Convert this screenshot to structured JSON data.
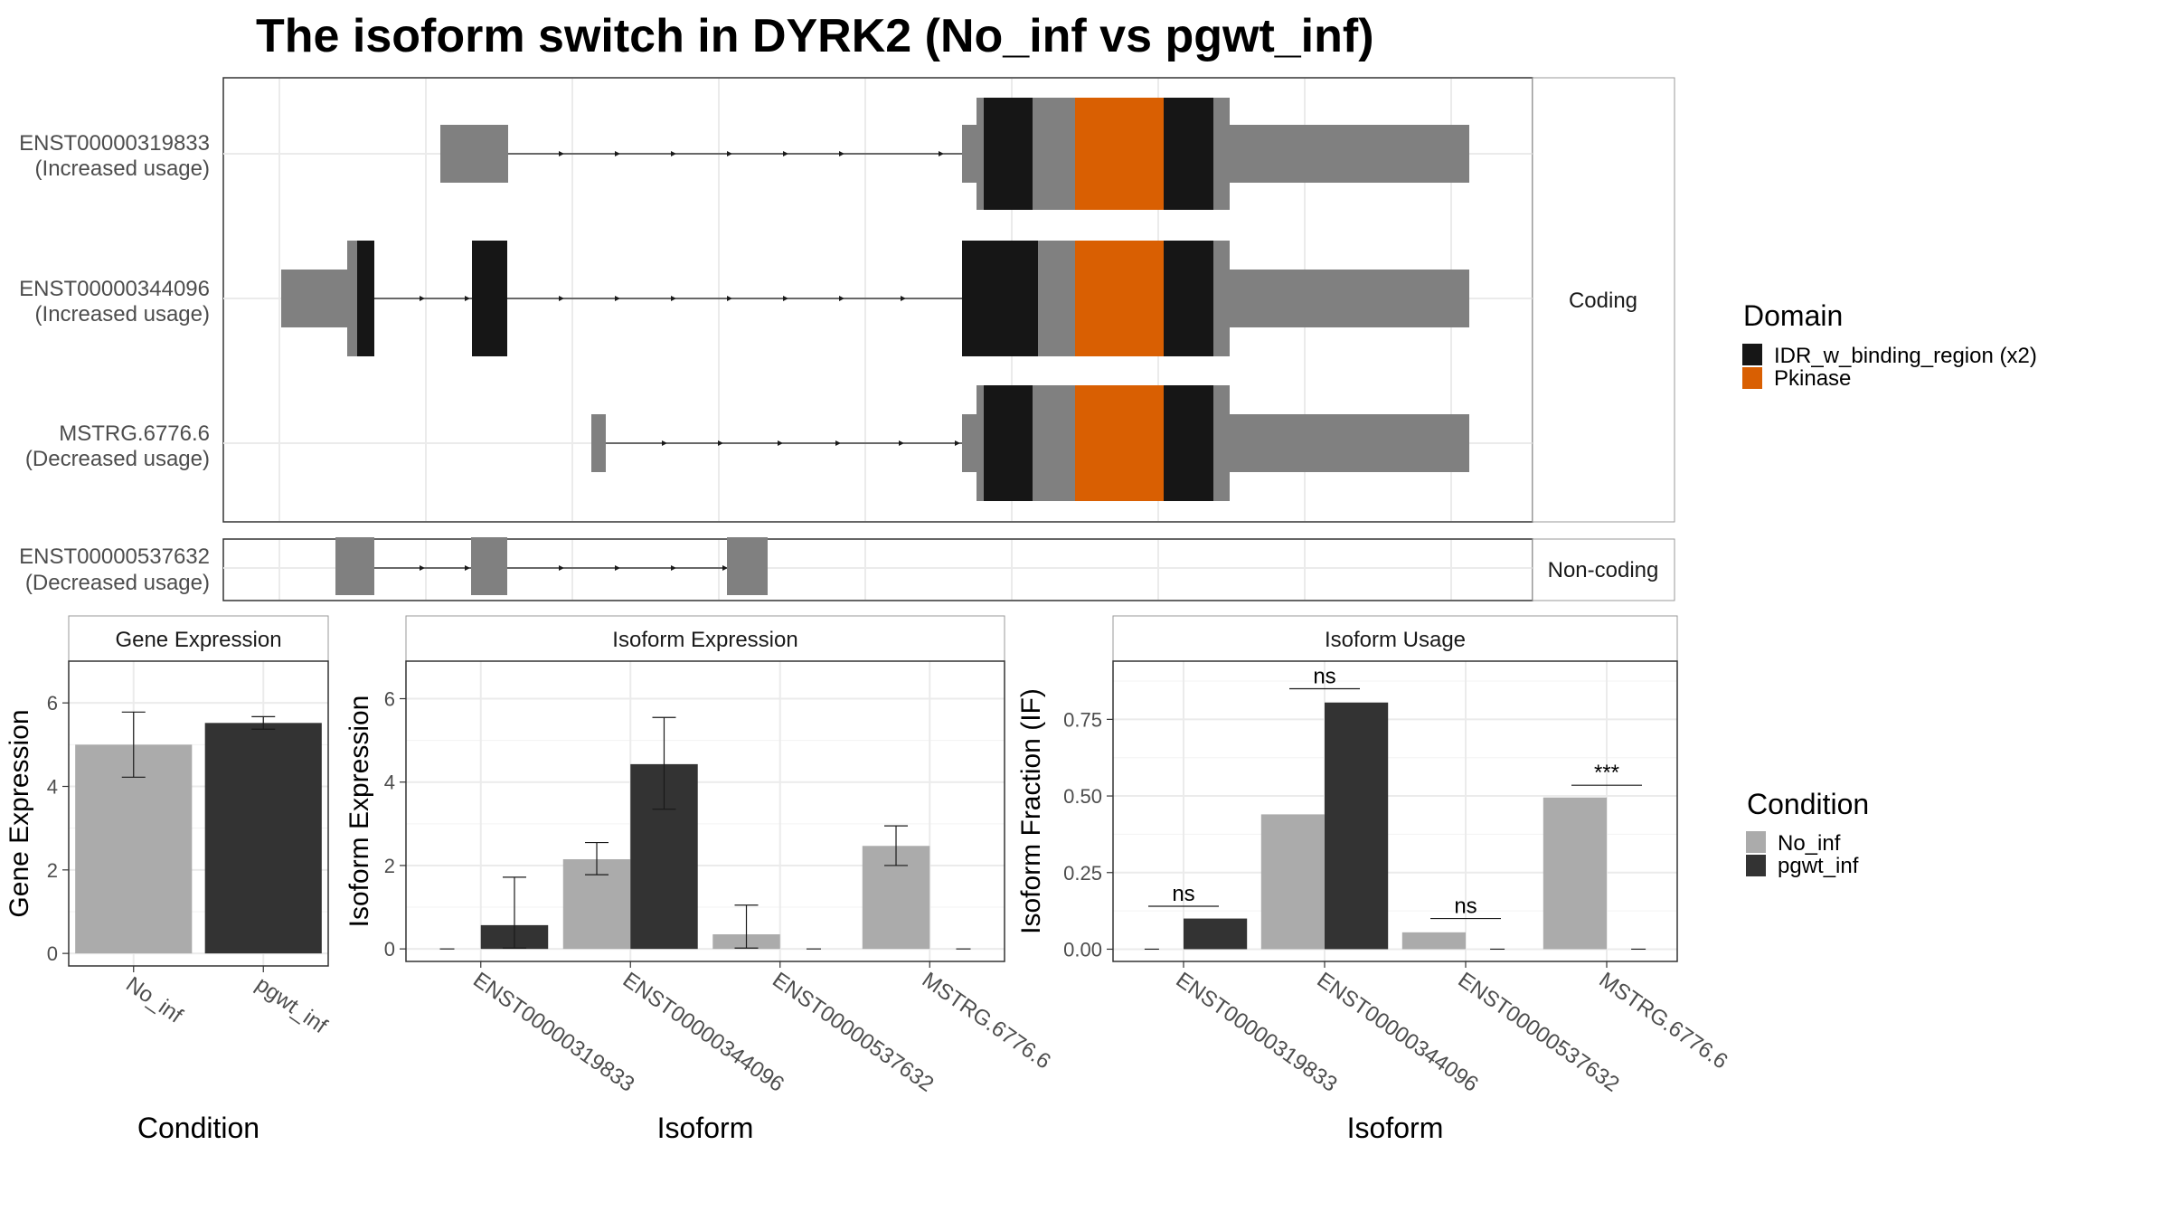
{
  "title": "The isoform switch in DYRK2 (No_inf vs pgwt_inf)",
  "colors": {
    "no_inf": "#ababab",
    "pgwt_inf": "#333333",
    "idr": "#161616",
    "pkinase": "#d95f02",
    "exon": "#808080",
    "grid": "#ebebeb",
    "border": "#333333"
  },
  "transcripts": {
    "coding_strip_label": "Coding",
    "noncoding_strip_label": "Non-coding",
    "rows": [
      {
        "id": "ENST00000319833",
        "usage": "(Increased usage)",
        "group": "coding"
      },
      {
        "id": "ENST00000344096",
        "usage": "(Increased usage)",
        "group": "coding"
      },
      {
        "id": "MSTRG.6776.6",
        "usage": "(Decreased usage)",
        "group": "coding"
      },
      {
        "id": "ENST00000537632",
        "usage": "(Decreased usage)",
        "group": "noncoding"
      }
    ]
  },
  "domain_legend": {
    "title": "Domain",
    "items": [
      {
        "label": "IDR_w_binding_region (x2)",
        "color": "#161616"
      },
      {
        "label": "Pkinase",
        "color": "#d95f02"
      }
    ]
  },
  "condition_legend": {
    "title": "Condition",
    "items": [
      {
        "label": "No_inf",
        "color": "#ababab"
      },
      {
        "label": "pgwt_inf",
        "color": "#333333"
      }
    ]
  },
  "chart_data": [
    {
      "type": "bar",
      "panel": "Gene Expression",
      "xlabel": "Condition",
      "ylabel": "Gene Expression",
      "ylim": [
        -0.3,
        7
      ],
      "yticks": [
        0,
        2,
        4,
        6
      ],
      "categories": [
        "No_inf",
        "pgwt_inf"
      ],
      "values": [
        5.0,
        5.52
      ],
      "errors": [
        [
          4.22,
          5.78
        ],
        [
          5.37,
          5.67
        ]
      ],
      "bar_colors": [
        "#ababab",
        "#333333"
      ]
    },
    {
      "type": "bar",
      "panel": "Isoform Expression",
      "xlabel": "Isoform",
      "ylabel": "Isoform Expression",
      "ylim": [
        -0.3,
        6.9
      ],
      "yticks": [
        0,
        2,
        4,
        6
      ],
      "categories": [
        "ENST00000319833",
        "ENST00000344096",
        "ENST00000537632",
        "MSTRG.6776.6"
      ],
      "series": [
        {
          "name": "No_inf",
          "values": [
            0,
            2.15,
            0.35,
            2.47
          ],
          "errors": [
            null,
            [
              1.78,
              2.55
            ],
            [
              0.02,
              1.05
            ],
            [
              2.0,
              2.95
            ]
          ]
        },
        {
          "name": "pgwt_inf",
          "values": [
            0.57,
            4.43,
            0,
            0
          ],
          "errors": [
            [
              0.02,
              1.72
            ],
            [
              3.35,
              5.55
            ],
            null,
            null
          ]
        }
      ]
    },
    {
      "type": "bar",
      "panel": "Isoform Usage",
      "xlabel": "Isoform",
      "ylabel": "Isoform Fraction (IF)",
      "ylim": [
        -0.04,
        0.94
      ],
      "yticks": [
        "0.00",
        "0.25",
        "0.50",
        "0.75"
      ],
      "categories": [
        "ENST00000319833",
        "ENST00000344096",
        "ENST00000537632",
        "MSTRG.6776.6"
      ],
      "series": [
        {
          "name": "No_inf",
          "values": [
            0,
            0.44,
            0.055,
            0.495
          ]
        },
        {
          "name": "pgwt_inf",
          "values": [
            0.1,
            0.805,
            0,
            0
          ]
        }
      ],
      "significance": [
        "ns",
        "ns",
        "ns",
        "***"
      ],
      "significance_y": [
        0.14,
        0.85,
        0.1,
        0.535
      ]
    }
  ]
}
